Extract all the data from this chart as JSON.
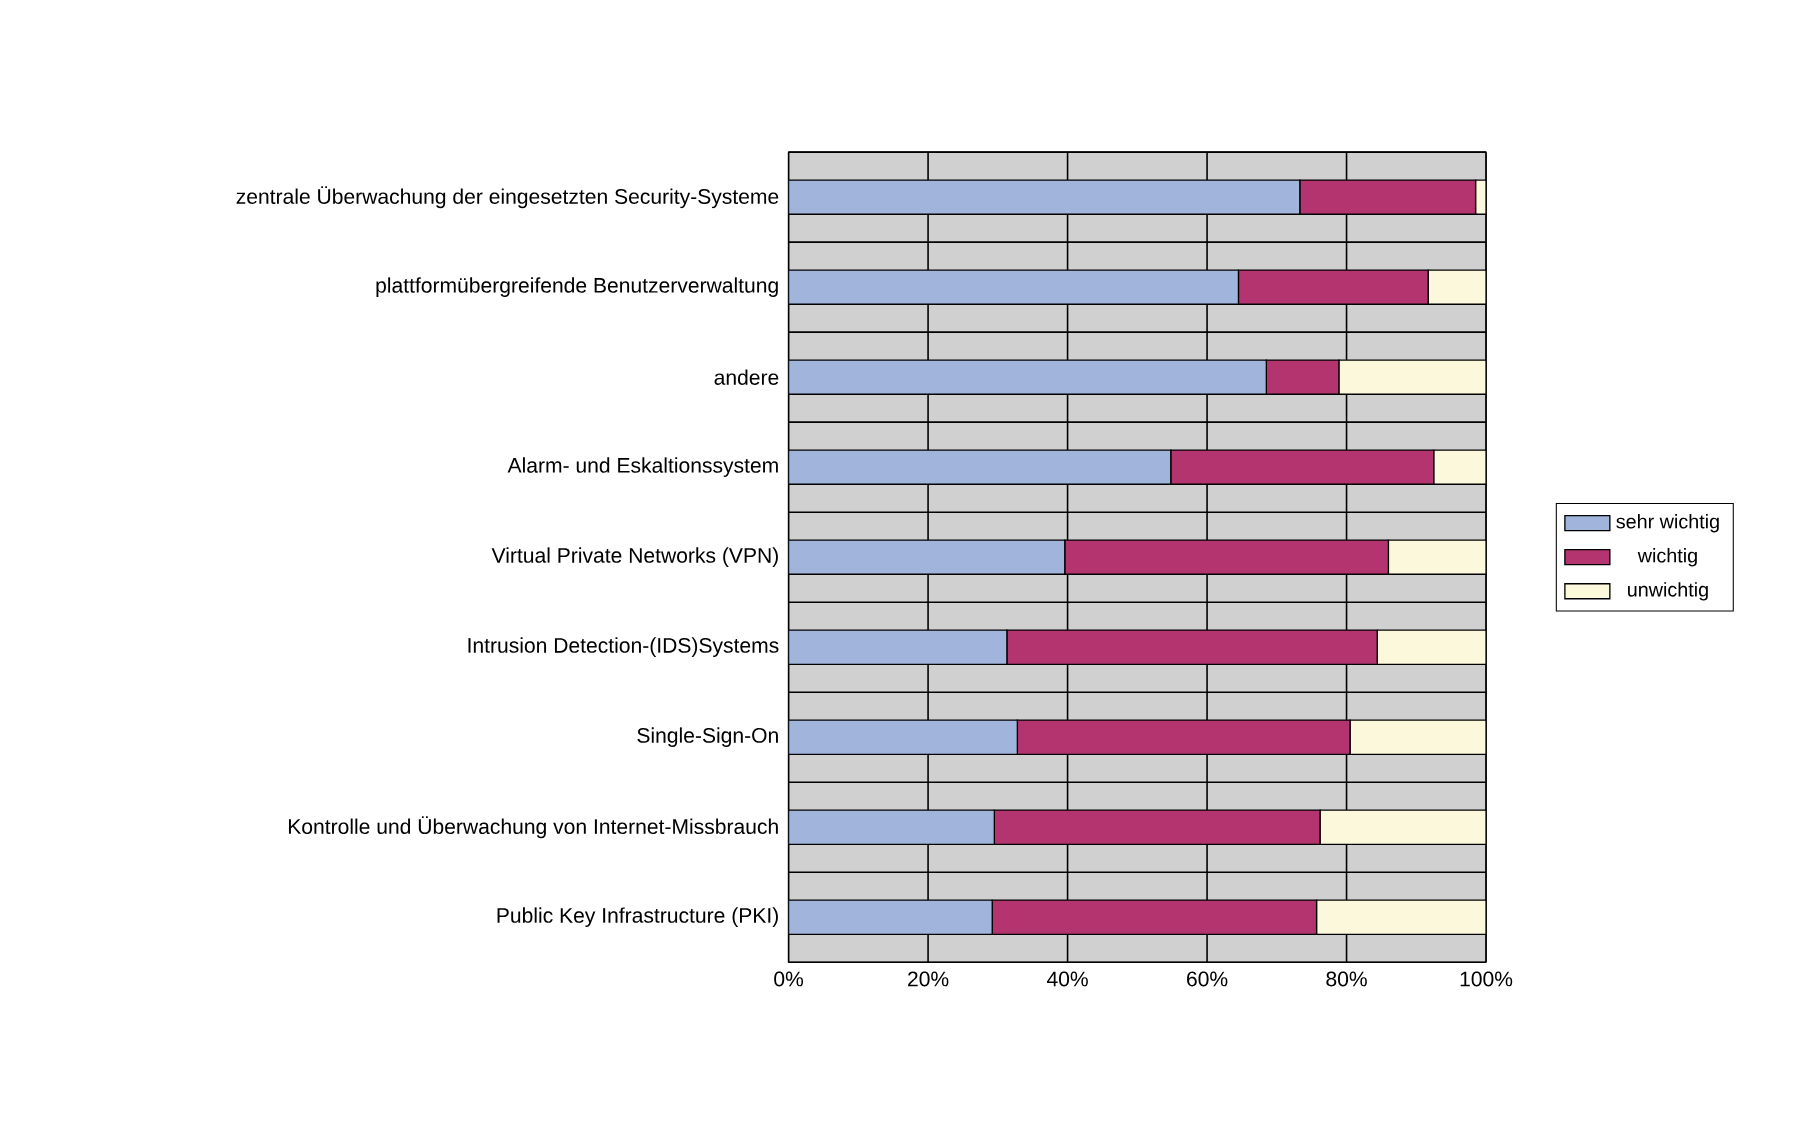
{
  "chart_data": {
    "type": "bar",
    "orientation": "horizontal",
    "stacked": true,
    "categories": [
      "zentrale Überwachung der eingesetzten Security-Systeme",
      "plattformübergreifende Benutzerverwaltung",
      "andere",
      "Alarm- und Eskaltionssystem",
      "Virtual Private Networks (VPN)",
      "Intrusion Detection-(IDS)Systems",
      "Single-Sign-On",
      "Kontrolle und Überwachung von Internet-Missbrauch",
      "Public Key Infrastructure (PKI)"
    ],
    "series": [
      {
        "name": "sehr wichtig",
        "color": "#a0b4dc",
        "values": [
          73.3,
          64.5,
          68.5,
          54.8,
          39.6,
          31.3,
          32.8,
          29.5,
          29.2
        ]
      },
      {
        "name": "wichtig",
        "color": "#b43470",
        "values": [
          25.2,
          27.2,
          10.4,
          37.7,
          46.4,
          53.1,
          47.7,
          46.7,
          46.5
        ]
      },
      {
        "name": "unwichtig",
        "color": "#fcf8dc",
        "values": [
          1.5,
          8.3,
          21.1,
          7.5,
          14.0,
          15.6,
          19.5,
          23.8,
          24.3
        ]
      }
    ],
    "xlim": [
      0,
      100
    ],
    "xticks": [
      {
        "value": 0,
        "label": "0%"
      },
      {
        "value": 20,
        "label": "20%"
      },
      {
        "value": 40,
        "label": "40%"
      },
      {
        "value": 60,
        "label": "60%"
      },
      {
        "value": 80,
        "label": "80%"
      },
      {
        "value": 100,
        "label": "100%"
      }
    ],
    "grid": true,
    "legend": "right"
  }
}
